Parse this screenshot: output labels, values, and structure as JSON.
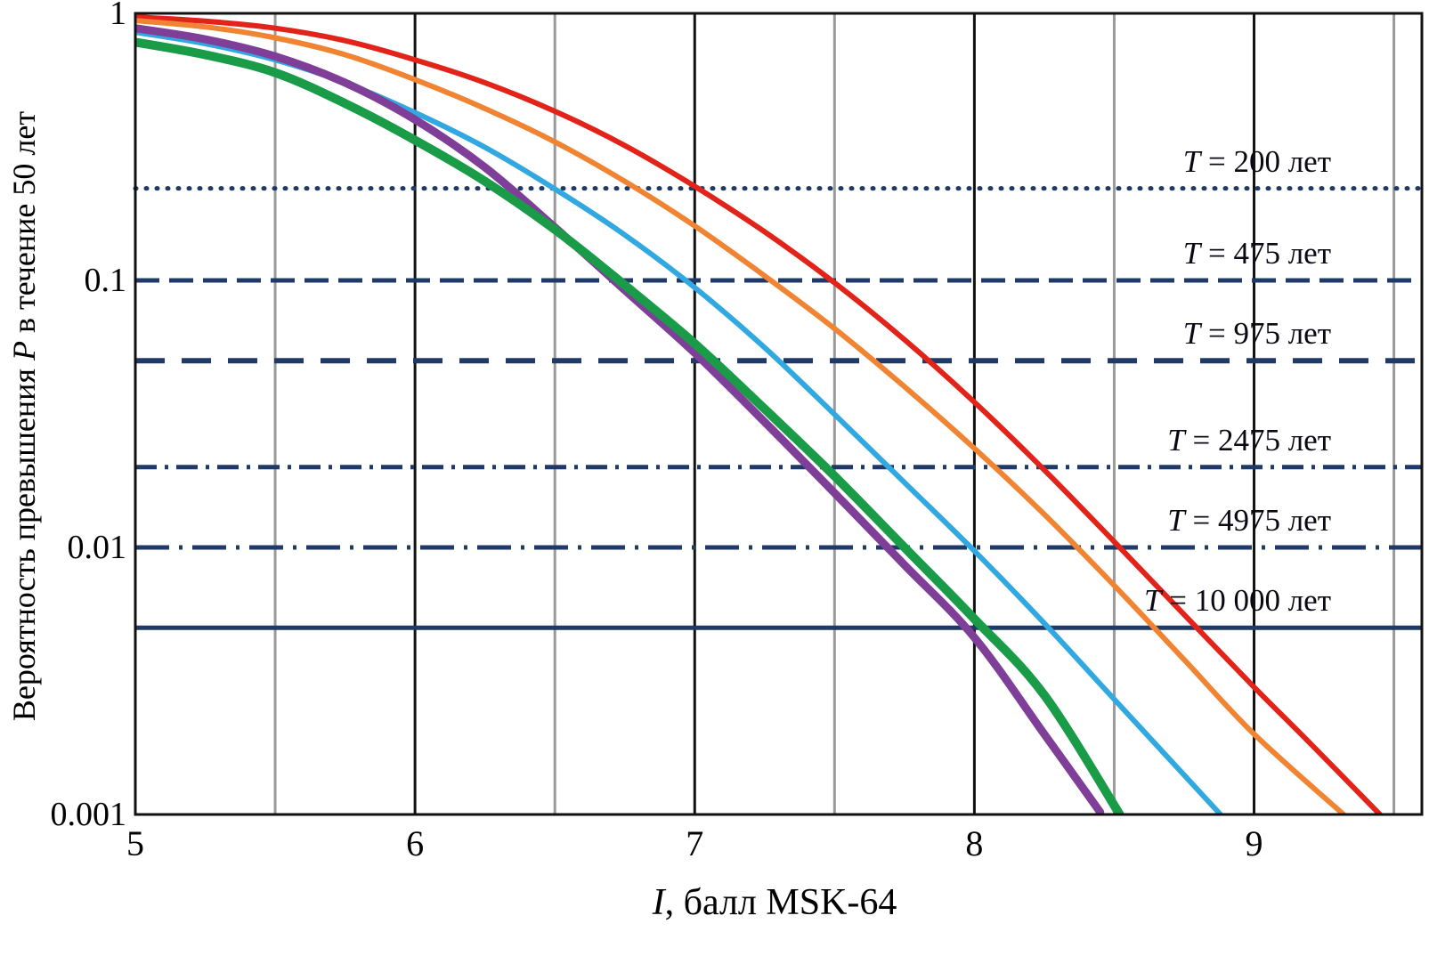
{
  "axes": {
    "y_title": {
      "pre": "Вероятность превышения ",
      "it": "P",
      "post": " в течение  50 лет"
    },
    "x_title": {
      "it": "I",
      "post": ", балл MSK-64"
    },
    "x_tick_labels": [
      "5",
      "6",
      "7",
      "8",
      "9"
    ],
    "x_tick_values": [
      5,
      6,
      7,
      8,
      9
    ],
    "y_tick_labels": [
      "1",
      "0.1",
      "0.01",
      "0.001"
    ],
    "y_tick_values": [
      1,
      0.1,
      0.01,
      0.001
    ]
  },
  "chart_data": {
    "type": "line",
    "title": "",
    "xlabel": "I, балл MSK-64",
    "ylabel": "Вероятность превышения P в течение 50 лет",
    "x_range": [
      5,
      9.6
    ],
    "y_range": [
      0.001,
      1
    ],
    "y_scale": "log",
    "grid": {
      "x_major": [
        6,
        7,
        8,
        9
      ],
      "x_minor": [
        5.5,
        6.5,
        7.5,
        8.5,
        9.5
      ],
      "major_color": "#111111",
      "minor_color": "#9a9a9a"
    },
    "threshold_line_color": "#1f3968",
    "thresholds": [
      {
        "T_years": 200,
        "p": 0.221,
        "style": "dotted",
        "var": "T",
        "rest": " = 200 лет"
      },
      {
        "T_years": 475,
        "p": 0.1,
        "style": "dashed",
        "var": "T",
        "rest": " = 475 лет"
      },
      {
        "T_years": 975,
        "p": 0.05,
        "style": "dashed-long",
        "var": "T",
        "rest": " = 975 лет"
      },
      {
        "T_years": 2475,
        "p": 0.02,
        "style": "dashdot",
        "var": "T",
        "rest": " = 2475 лет"
      },
      {
        "T_years": 4975,
        "p": 0.01,
        "style": "dashdot-long",
        "var": "T",
        "rest": " = 4975 лет"
      },
      {
        "T_years": 10000,
        "p": 0.005,
        "style": "solid",
        "var": "T",
        "rest": " = 10 000 лет"
      }
    ],
    "series": [
      {
        "name": "hazard-curve-red",
        "color": "#e2231a",
        "width": 6,
        "points": [
          [
            5,
            0.97
          ],
          [
            5.25,
            0.935
          ],
          [
            5.5,
            0.88
          ],
          [
            5.75,
            0.79
          ],
          [
            6,
            0.67
          ],
          [
            6.25,
            0.55
          ],
          [
            6.5,
            0.43
          ],
          [
            6.75,
            0.32
          ],
          [
            7,
            0.225
          ],
          [
            7.25,
            0.152
          ],
          [
            7.5,
            0.098
          ],
          [
            7.75,
            0.06
          ],
          [
            8,
            0.035
          ],
          [
            8.25,
            0.0195
          ],
          [
            8.5,
            0.0105
          ],
          [
            8.75,
            0.0056
          ],
          [
            9,
            0.003
          ],
          [
            9.2,
            0.00185
          ],
          [
            9.45,
            0.001
          ]
        ]
      },
      {
        "name": "hazard-curve-orange",
        "color": "#f08432",
        "width": 6,
        "points": [
          [
            5,
            0.94
          ],
          [
            5.25,
            0.89
          ],
          [
            5.5,
            0.81
          ],
          [
            5.75,
            0.7
          ],
          [
            6,
            0.565
          ],
          [
            6.25,
            0.44
          ],
          [
            6.5,
            0.33
          ],
          [
            6.75,
            0.235
          ],
          [
            7,
            0.16
          ],
          [
            7.25,
            0.104
          ],
          [
            7.5,
            0.066
          ],
          [
            7.75,
            0.04
          ],
          [
            8,
            0.0235
          ],
          [
            8.25,
            0.0133
          ],
          [
            8.5,
            0.0072
          ],
          [
            8.75,
            0.0038
          ],
          [
            9,
            0.002
          ],
          [
            9.32,
            0.001
          ]
        ]
      },
      {
        "name": "hazard-curve-cyan",
        "color": "#31a8e0",
        "width": 6,
        "points": [
          [
            5,
            0.85
          ],
          [
            5.25,
            0.77
          ],
          [
            5.5,
            0.67
          ],
          [
            5.75,
            0.55
          ],
          [
            6,
            0.425
          ],
          [
            6.25,
            0.315
          ],
          [
            6.5,
            0.22
          ],
          [
            6.75,
            0.148
          ],
          [
            7,
            0.094
          ],
          [
            7.25,
            0.056
          ],
          [
            7.5,
            0.0315
          ],
          [
            7.75,
            0.0175
          ],
          [
            8,
            0.0097
          ],
          [
            8.25,
            0.0052
          ],
          [
            8.5,
            0.0027
          ],
          [
            8.88,
            0.001
          ]
        ]
      },
      {
        "name": "hazard-curve-purple",
        "color": "#7f3f98",
        "width": 9,
        "points": [
          [
            5,
            0.88
          ],
          [
            5.25,
            0.8
          ],
          [
            5.5,
            0.69
          ],
          [
            5.75,
            0.55
          ],
          [
            6,
            0.4
          ],
          [
            6.25,
            0.265
          ],
          [
            6.5,
            0.158
          ],
          [
            6.75,
            0.092
          ],
          [
            7,
            0.0535
          ],
          [
            7.25,
            0.0295
          ],
          [
            7.5,
            0.016
          ],
          [
            7.75,
            0.0086
          ],
          [
            8,
            0.0046
          ],
          [
            8.25,
            0.002
          ],
          [
            8.45,
            0.00102
          ]
        ]
      },
      {
        "name": "hazard-curve-green",
        "color": "#199b48",
        "width": 10,
        "points": [
          [
            5,
            0.78
          ],
          [
            5.25,
            0.7
          ],
          [
            5.5,
            0.6
          ],
          [
            5.75,
            0.46
          ],
          [
            6,
            0.335
          ],
          [
            6.25,
            0.235
          ],
          [
            6.5,
            0.155
          ],
          [
            6.75,
            0.096
          ],
          [
            7,
            0.058
          ],
          [
            7.25,
            0.033
          ],
          [
            7.5,
            0.0185
          ],
          [
            7.75,
            0.01
          ],
          [
            8,
            0.0054
          ],
          [
            8.25,
            0.0028
          ],
          [
            8.52,
            0.001
          ]
        ]
      }
    ],
    "legend_position": "right-inline-labels"
  }
}
